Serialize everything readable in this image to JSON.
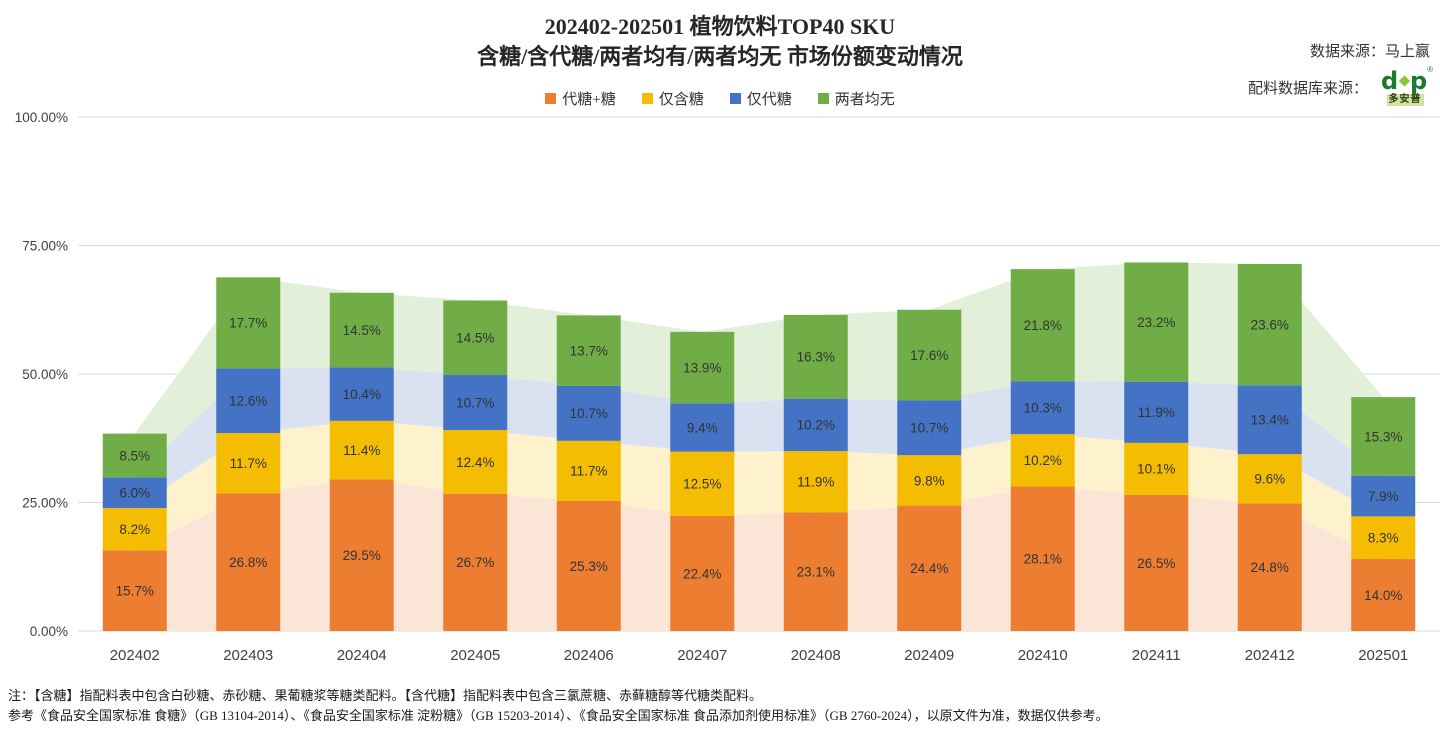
{
  "header": {
    "title_line1": "202402-202501 植物饮料TOP40 SKU",
    "title_line2": "含糖/含代糖/两者均有/两者均无 市场份额变动情况",
    "data_source": "数据来源：马上赢",
    "ingredient_source": "配料数据库来源：",
    "logo_text": "多安普",
    "logo_registered": "®"
  },
  "chart_data": {
    "type": "bar",
    "subtype": "stacked-bars-with-light-area-bands",
    "categories": [
      "202402",
      "202403",
      "202404",
      "202405",
      "202406",
      "202407",
      "202408",
      "202409",
      "202410",
      "202411",
      "202412",
      "202501"
    ],
    "series": [
      {
        "name": "代糖+糖",
        "color": "#ED7D31",
        "area_color": "#FBE5D6",
        "values": [
          15.7,
          26.8,
          29.5,
          26.7,
          25.3,
          22.4,
          23.1,
          24.4,
          28.1,
          26.5,
          24.8,
          14.0
        ]
      },
      {
        "name": "仅含糖",
        "color": "#F5BD02",
        "area_color": "#FDF2CC",
        "values": [
          8.2,
          11.7,
          11.4,
          12.4,
          11.7,
          12.5,
          11.9,
          9.8,
          10.2,
          10.1,
          9.6,
          8.3
        ]
      },
      {
        "name": "仅代糖",
        "color": "#4472C4",
        "area_color": "#DAE2F2",
        "values": [
          6.0,
          12.6,
          10.4,
          10.7,
          10.7,
          9.4,
          10.2,
          10.7,
          10.3,
          11.9,
          13.4,
          7.9
        ]
      },
      {
        "name": "两者均无",
        "color": "#70AD47",
        "area_color": "#E2EFD9",
        "values": [
          8.5,
          17.7,
          14.5,
          14.5,
          13.7,
          13.9,
          16.3,
          17.6,
          21.8,
          23.2,
          23.6,
          15.3
        ]
      }
    ],
    "value_label_suffix": "%",
    "y_ticks": [
      {
        "label": "0.00%",
        "value": 0
      },
      {
        "label": "25.00%",
        "value": 25
      },
      {
        "label": "50.00%",
        "value": 50
      },
      {
        "label": "75.00%",
        "value": 75
      },
      {
        "label": "100.00%",
        "value": 100
      }
    ],
    "ylim": [
      0,
      100
    ],
    "grid": true,
    "legend_position": "top",
    "grid_color": "#d9d9d9",
    "label_color": "#333333",
    "axis_label_color": "#404040"
  },
  "footnotes": {
    "line1": "注：【含糖】指配料表中包含白砂糖、赤砂糖、果葡糖浆等糖类配料。【含代糖】指配料表中包含三氯蔗糖、赤藓糖醇等代糖类配料。",
    "line2": "参考《食品安全国家标准 食糖》（GB 13104-2014）、《食品安全国家标准 淀粉糖》（GB 15203-2014）、《食品安全国家标准 食品添加剂使用标准》（GB 2760-2024），以原文件为准，数据仅供参考。"
  }
}
